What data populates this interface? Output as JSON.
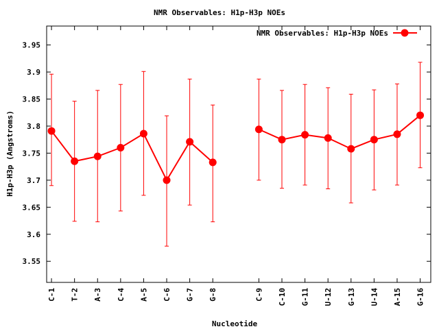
{
  "chart_data": {
    "type": "line",
    "title": "NMR Observables: H1p-H3p NOEs",
    "xlabel": "Nucleotide",
    "ylabel": "H1p-H3p (Angstroms)",
    "ylim": [
      3.511,
      3.985
    ],
    "xlim": [
      0.79,
      17.46
    ],
    "grid": false,
    "legend": {
      "placement": "top-right",
      "label": "NMR Observables: H1p-H3p NOEs"
    },
    "yticks": [
      "3.55",
      "3.6",
      "3.65",
      "3.7",
      "3.75",
      "3.8",
      "3.85",
      "3.9",
      "3.95"
    ],
    "ytick_values": [
      3.55,
      3.6,
      3.65,
      3.7,
      3.75,
      3.8,
      3.85,
      3.9,
      3.95
    ],
    "series": [
      {
        "name": "NMR Observables: H1p-H3p NOEs",
        "color": "#ff0000",
        "points": [
          {
            "label": "C-1",
            "x": 1,
            "y": 3.791,
            "ymin": 3.69,
            "ymax": 3.896,
            "segment": 0
          },
          {
            "label": "T-2",
            "x": 2,
            "y": 3.735,
            "ymin": 3.624,
            "ymax": 3.846,
            "segment": 0
          },
          {
            "label": "A-3",
            "x": 3,
            "y": 3.744,
            "ymin": 3.623,
            "ymax": 3.866,
            "segment": 0
          },
          {
            "label": "C-4",
            "x": 4,
            "y": 3.76,
            "ymin": 3.643,
            "ymax": 3.877,
            "segment": 0
          },
          {
            "label": "A-5",
            "x": 5,
            "y": 3.786,
            "ymin": 3.672,
            "ymax": 3.901,
            "segment": 0
          },
          {
            "label": "C-6",
            "x": 6,
            "y": 3.7,
            "ymin": 3.578,
            "ymax": 3.819,
            "segment": 0
          },
          {
            "label": "G-7",
            "x": 7,
            "y": 3.771,
            "ymin": 3.654,
            "ymax": 3.887,
            "segment": 0
          },
          {
            "label": "G-8",
            "x": 8,
            "y": 3.733,
            "ymin": 3.623,
            "ymax": 3.839,
            "segment": 0
          },
          {
            "label": "C-9",
            "x": 10,
            "y": 3.794,
            "ymin": 3.7,
            "ymax": 3.887,
            "segment": 1
          },
          {
            "label": "C-10",
            "x": 11,
            "y": 3.775,
            "ymin": 3.685,
            "ymax": 3.866,
            "segment": 1
          },
          {
            "label": "G-11",
            "x": 12,
            "y": 3.784,
            "ymin": 3.691,
            "ymax": 3.877,
            "segment": 1
          },
          {
            "label": "U-12",
            "x": 13,
            "y": 3.778,
            "ymin": 3.684,
            "ymax": 3.871,
            "segment": 1
          },
          {
            "label": "G-13",
            "x": 14,
            "y": 3.758,
            "ymin": 3.658,
            "ymax": 3.859,
            "segment": 1
          },
          {
            "label": "U-14",
            "x": 15,
            "y": 3.775,
            "ymin": 3.682,
            "ymax": 3.867,
            "segment": 1
          },
          {
            "label": "A-15",
            "x": 16,
            "y": 3.785,
            "ymin": 3.691,
            "ymax": 3.878,
            "segment": 1
          },
          {
            "label": "G-16",
            "x": 17,
            "y": 3.82,
            "ymin": 3.723,
            "ymax": 3.918,
            "segment": 1
          }
        ]
      }
    ]
  }
}
